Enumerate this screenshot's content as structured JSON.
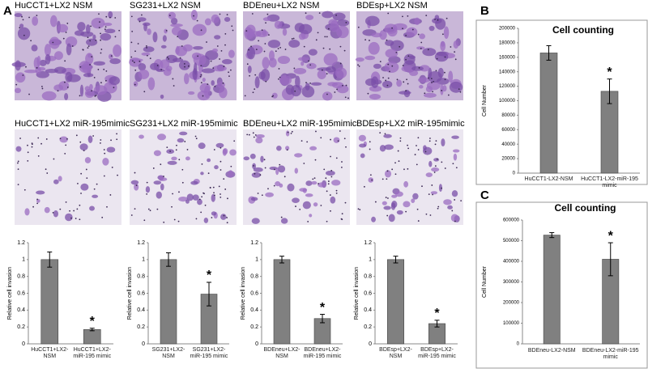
{
  "panel_labels": [
    "A",
    "B",
    "C"
  ],
  "image_captions": [
    "HuCCT1+LX2 NSM",
    "SG231+LX2 NSM",
    "BDEneu+LX2 NSM",
    "BDEsp+LX2 NSM",
    "HuCCT1+LX2 miR-195mimic",
    "SG231+LX2 miR-195mimic",
    "BDEneu+LX2 miR-195mimic",
    "BDEsp+LX2 miR-195mimic"
  ],
  "chart_data": [
    {
      "type": "bar",
      "y_label": "Relative cell invasion",
      "categories": [
        "HuCCT1+LX2-NSM",
        "HuCCT1+LX2-miR-195 mimic"
      ],
      "values": [
        1.0,
        0.17
      ],
      "errors": [
        0.09,
        0.015
      ],
      "annotations": [
        null,
        "*"
      ],
      "color": "#808080",
      "ylim": [
        0,
        1.2
      ],
      "yticks": [
        0,
        0.2,
        0.4,
        0.6,
        0.8,
        1,
        1.2
      ]
    },
    {
      "type": "bar",
      "y_label": "Relative cell invasion",
      "categories": [
        "SG231+LX2-NSM",
        "SG231+LX2-miR-195 mimic"
      ],
      "values": [
        1.0,
        0.59
      ],
      "errors": [
        0.08,
        0.14
      ],
      "annotations": [
        null,
        "*"
      ],
      "color": "#808080",
      "ylim": [
        0,
        1.2
      ],
      "yticks": [
        0,
        0.2,
        0.4,
        0.6,
        0.8,
        1,
        1.2
      ]
    },
    {
      "type": "bar",
      "y_label": "Relative cell invasion",
      "categories": [
        "BDEneu+LX2-NSM",
        "BDEneu+LX2-miR-195 mimic"
      ],
      "values": [
        1.0,
        0.3
      ],
      "errors": [
        0.04,
        0.05
      ],
      "annotations": [
        null,
        "*"
      ],
      "color": "#808080",
      "ylim": [
        0,
        1.2
      ],
      "yticks": [
        0,
        0.2,
        0.4,
        0.6,
        0.8,
        1,
        1.2
      ]
    },
    {
      "type": "bar",
      "y_label": "Relative cell invasion",
      "categories": [
        "BDEsp+LX2-NSM",
        "BDEsp+LX2-miR-195 mimic"
      ],
      "values": [
        1.0,
        0.24
      ],
      "errors": [
        0.04,
        0.04
      ],
      "annotations": [
        null,
        "*"
      ],
      "color": "#808080",
      "ylim": [
        0,
        1.2
      ],
      "yticks": [
        0,
        0.2,
        0.4,
        0.6,
        0.8,
        1,
        1.2
      ]
    },
    {
      "type": "bar",
      "title": "Cell counting",
      "y_label": "Cell Number",
      "categories": [
        "HuCCT1-LX2-NSM",
        "HuCCT1-LX2-miR-195 mimic"
      ],
      "values": [
        166000,
        113000
      ],
      "errors": [
        10000,
        17000
      ],
      "annotations": [
        null,
        "*"
      ],
      "color": "#808080",
      "ylim": [
        0,
        200000
      ],
      "yticks": [
        0,
        20000,
        40000,
        60000,
        80000,
        100000,
        120000,
        140000,
        160000,
        180000,
        200000
      ]
    },
    {
      "type": "bar",
      "title": "Cell counting",
      "y_label": "Cell Number",
      "categories": [
        "BDEneu-LX2-NSM",
        "BDEneu-LX2-miR-195 mimic"
      ],
      "values": [
        527000,
        410000
      ],
      "errors": [
        12000,
        80000
      ],
      "annotations": [
        null,
        "*"
      ],
      "color": "#808080",
      "ylim": [
        0,
        600000
      ],
      "yticks": [
        0,
        100000,
        200000,
        300000,
        400000,
        500000,
        600000
      ]
    }
  ]
}
